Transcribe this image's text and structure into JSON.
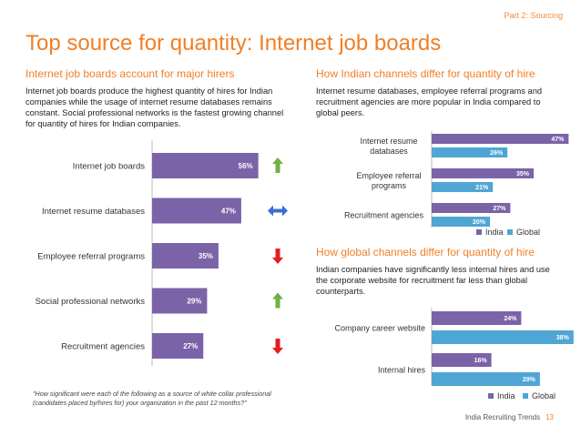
{
  "page": {
    "section": "Part 2: Sourcing",
    "title": "Top source for quantity: Internet job boards",
    "footer": "India Recruiting Trends",
    "page_number": "13"
  },
  "left": {
    "heading": "Internet job boards account for major hirers",
    "body": "Internet job boards produce the highest quantity of hires for Indian companies while the usage of internet resume databases remains constant. Social professional networks is the fastest growing channel for quantity of hires for Indian companies.",
    "quote": "\"How significant were each of the following as a source of white collar professional (candidates placed by/hires for) your organization in the past 12 months?\""
  },
  "right_top": {
    "heading": "How Indian channels differ for quantity of hire",
    "body": "Internet resume databases, employee referral programs and recruitment agencies are more popular in India compared to global peers."
  },
  "right_bottom": {
    "heading": "How global channels differ for quantity of hire",
    "body": "Indian companies have significantly less internal hires and use the corporate website for recruitment  far less than global counterparts."
  },
  "colors": {
    "india": "#7b63a8",
    "global": "#4fa6d4",
    "accent": "#f07f26",
    "trend_up": "#72b043",
    "trend_flat": "#3a6fd0",
    "trend_down": "#e02020"
  },
  "chart_data": [
    {
      "type": "bar",
      "orientation": "horizontal",
      "categories": [
        "Internet job boards",
        "Internet resume databases",
        "Employee referral programs",
        "Social professional networks",
        "Recruitment agencies"
      ],
      "values": [
        56,
        47,
        35,
        29,
        27
      ],
      "labels": [
        "56%",
        "47%",
        "35%",
        "29%",
        "27%"
      ],
      "trends": [
        "up",
        "flat",
        "down",
        "up",
        "down"
      ],
      "xlim": [
        0,
        60
      ]
    },
    {
      "type": "bar",
      "orientation": "horizontal",
      "categories": [
        "Internet resume databases",
        "Employee referral programs",
        "Recruitment agencies"
      ],
      "series": [
        {
          "name": "India",
          "values": [
            47,
            35,
            27
          ],
          "labels": [
            "47%",
            "35%",
            "27%"
          ]
        },
        {
          "name": "Global",
          "values": [
            26,
            21,
            20
          ],
          "labels": [
            "26%",
            "21%",
            "20%"
          ]
        }
      ],
      "legend": "bottom",
      "xlim": [
        0,
        50
      ]
    },
    {
      "type": "bar",
      "orientation": "horizontal",
      "categories": [
        "Company career website",
        "Internal hires"
      ],
      "series": [
        {
          "name": "India",
          "values": [
            24,
            16
          ],
          "labels": [
            "24%",
            "16%"
          ]
        },
        {
          "name": "Global",
          "values": [
            38,
            29
          ],
          "labels": [
            "38%",
            "29%"
          ]
        }
      ],
      "legend": "bottom",
      "xlim": [
        0,
        40
      ]
    }
  ]
}
